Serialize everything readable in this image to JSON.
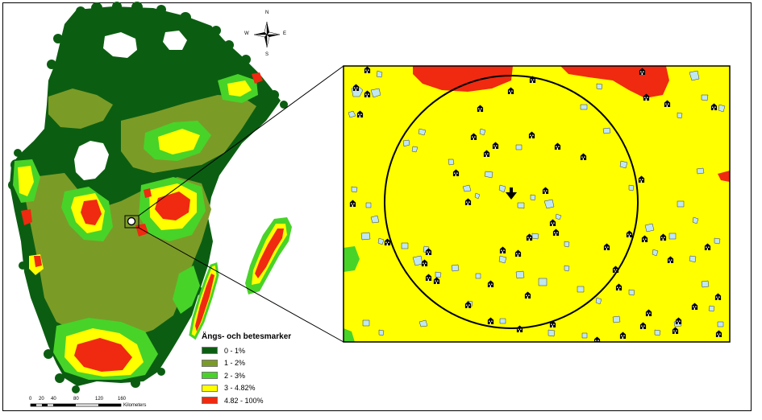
{
  "legend": {
    "title": "Ängs- och betesmarker",
    "items": [
      {
        "label": "0 - 1%",
        "color": "#0b5e11"
      },
      {
        "label": "1 - 2%",
        "color": "#7b9b27"
      },
      {
        "label": "2 - 3%",
        "color": "#48d329"
      },
      {
        "label": "3 - 4.82%",
        "color": "#ffff00"
      },
      {
        "label": "4.82 - 100%",
        "color": "#ef2a10"
      }
    ]
  },
  "scalebar": {
    "ticks": [
      "0",
      "20",
      "40",
      "80",
      "120",
      "160"
    ],
    "unit": "Kilometers"
  },
  "compass": {
    "n": "N",
    "s": "S",
    "e": "E",
    "w": "W"
  },
  "colors": {
    "dark_green": "#0b5e11",
    "olive": "#7b9b27",
    "light_green": "#48d329",
    "yellow": "#ffff00",
    "red": "#ef2a10",
    "patch": "#bfe7ef",
    "house": "#000000"
  }
}
